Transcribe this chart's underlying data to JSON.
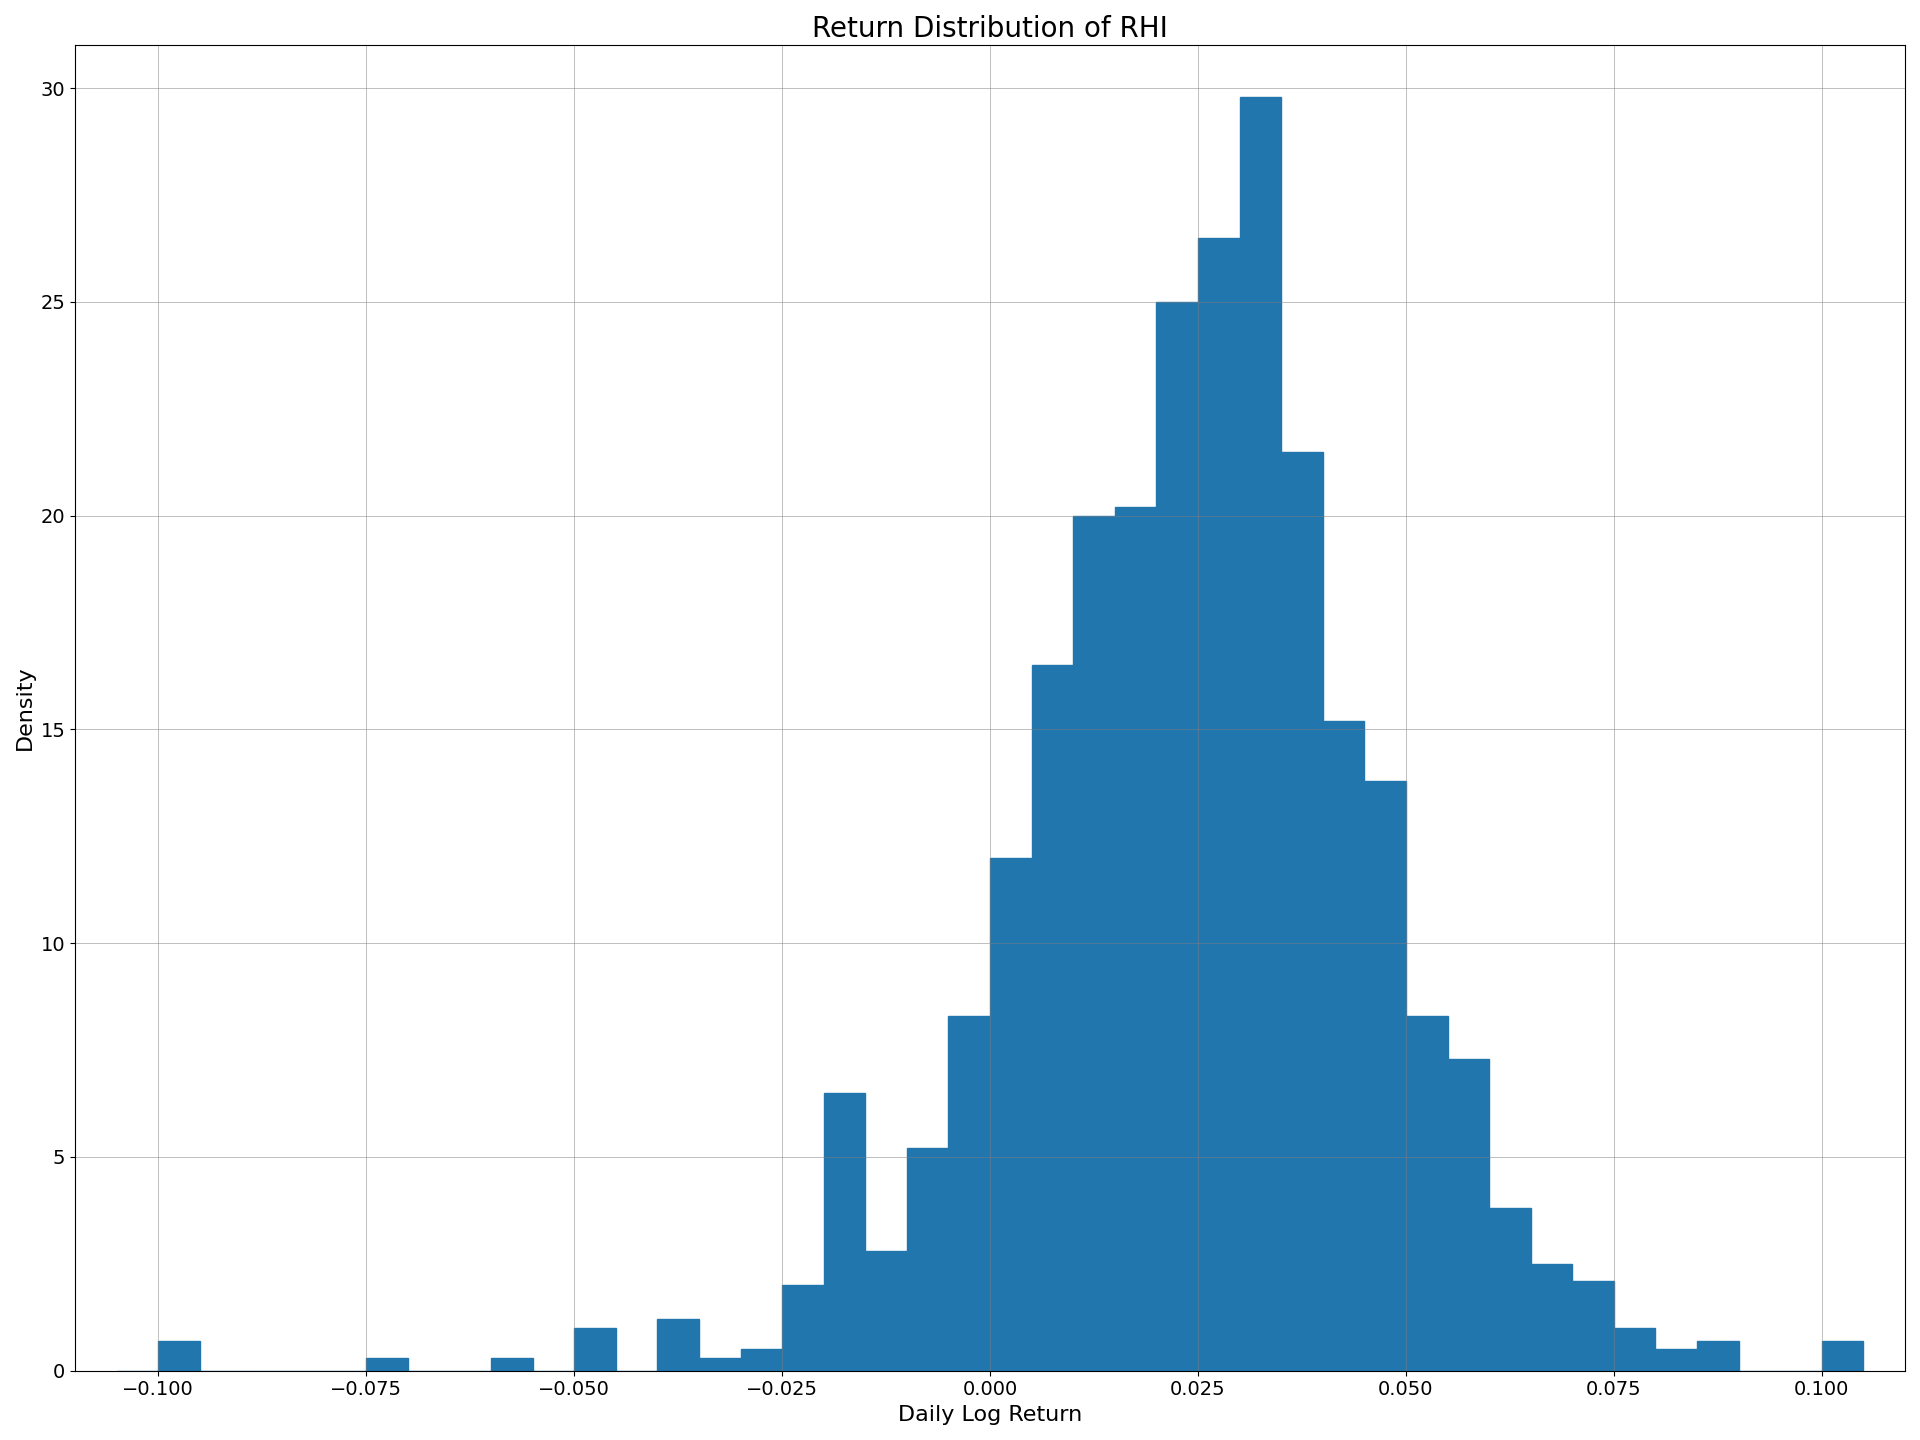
{
  "title": "Return Distribution of RHI",
  "xlabel": "Daily Log Return",
  "ylabel": "Density",
  "bar_color": "#2176ae",
  "xlim": [
    -0.11,
    0.11
  ],
  "ylim": [
    0,
    31
  ],
  "xticks": [
    -0.1,
    -0.075,
    -0.05,
    -0.025,
    0.0,
    0.025,
    0.05,
    0.075,
    0.1
  ],
  "yticks": [
    0,
    5,
    10,
    15,
    20,
    25,
    30
  ],
  "grid": true,
  "bin_edges": [
    -0.105,
    -0.1,
    -0.095,
    -0.09,
    -0.085,
    -0.08,
    -0.075,
    -0.07,
    -0.065,
    -0.06,
    -0.055,
    -0.05,
    -0.045,
    -0.04,
    -0.035,
    -0.03,
    -0.025,
    -0.02,
    -0.015,
    -0.01,
    -0.005,
    0.0,
    0.005,
    0.01,
    0.015,
    0.02,
    0.025,
    0.03,
    0.035,
    0.04,
    0.045,
    0.05,
    0.055,
    0.06,
    0.065,
    0.07,
    0.075,
    0.08,
    0.085,
    0.09,
    0.095,
    0.1,
    0.105
  ],
  "bar_heights": [
    0.0,
    0.7,
    0.0,
    0.0,
    0.0,
    0.0,
    0.3,
    0.0,
    0.0,
    0.3,
    0.0,
    1.0,
    0.0,
    1.2,
    0.3,
    0.5,
    2.0,
    6.5,
    2.8,
    5.2,
    8.3,
    12.0,
    16.5,
    20.0,
    20.2,
    25.0,
    26.5,
    29.8,
    21.5,
    15.2,
    13.8,
    8.3,
    7.3,
    3.8,
    2.5,
    2.1,
    1.0,
    0.5,
    0.7,
    0.0,
    0.0,
    0.7
  ],
  "title_fontsize": 20,
  "label_fontsize": 16,
  "tick_fontsize": 14,
  "figsize": [
    19.2,
    14.4
  ],
  "dpi": 100
}
